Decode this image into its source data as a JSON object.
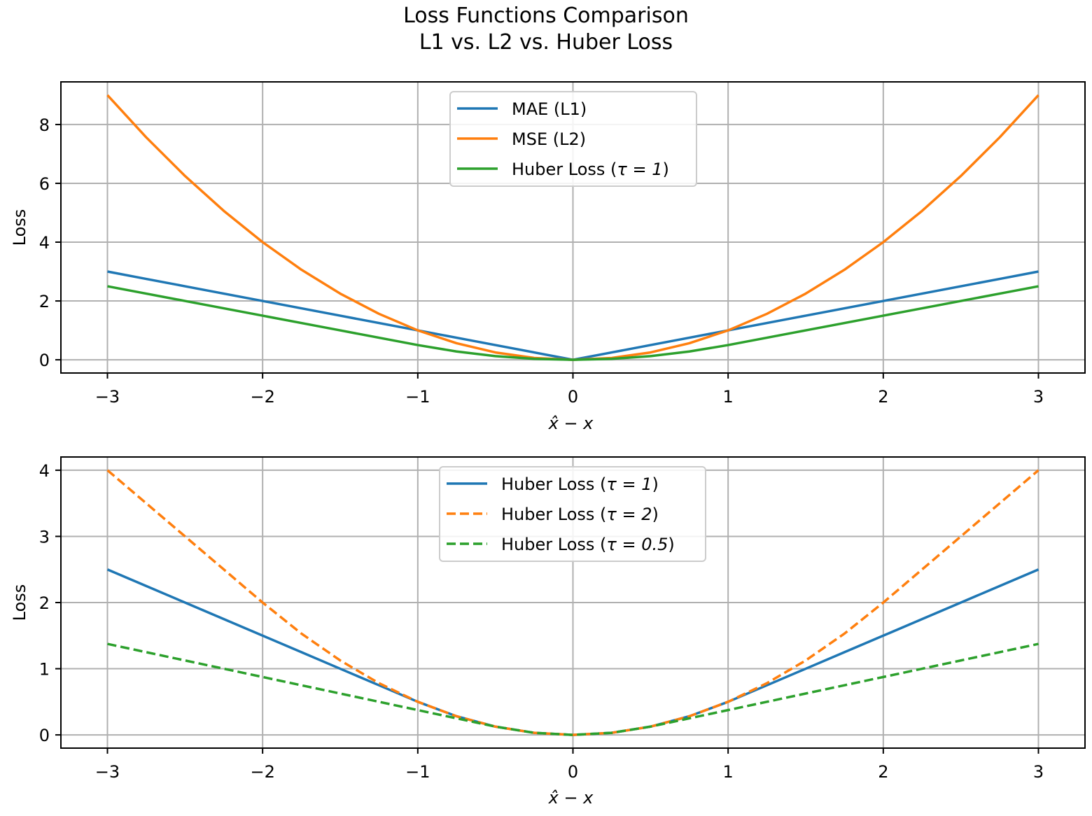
{
  "title_line1": "Loss Functions Comparison",
  "title_line2": "L1 vs. L2 vs. Huber Loss",
  "colors": {
    "blue": "#1f77b4",
    "orange": "#ff7f0e",
    "green": "#2ca02c",
    "grid": "#b0b0b0"
  },
  "chart_data": [
    {
      "type": "line",
      "xlabel": "x̂ − x",
      "ylabel": "Loss",
      "xlim": [
        -3.3,
        3.3
      ],
      "ylim": [
        -0.45,
        9.45
      ],
      "xticks": [
        -3,
        -2,
        -1,
        0,
        1,
        2,
        3
      ],
      "xtick_labels": [
        "−3",
        "−2",
        "−1",
        "0",
        "1",
        "2",
        "3"
      ],
      "yticks": [
        0,
        2,
        4,
        6,
        8
      ],
      "ytick_labels": [
        "0",
        "2",
        "4",
        "6",
        "8"
      ],
      "grid": true,
      "legend": "upper center",
      "x": [
        -3,
        -2.75,
        -2.5,
        -2.25,
        -2,
        -1.75,
        -1.5,
        -1.25,
        -1,
        -0.75,
        -0.5,
        -0.25,
        0,
        0.25,
        0.5,
        0.75,
        1,
        1.25,
        1.5,
        1.75,
        2,
        2.25,
        2.5,
        2.75,
        3
      ],
      "series": [
        {
          "name": "MAE (L1)",
          "color": "#1f77b4",
          "style": "solid",
          "values": [
            3,
            2.75,
            2.5,
            2.25,
            2,
            1.75,
            1.5,
            1.25,
            1,
            0.75,
            0.5,
            0.25,
            0,
            0.25,
            0.5,
            0.75,
            1,
            1.25,
            1.5,
            1.75,
            2,
            2.25,
            2.5,
            2.75,
            3
          ]
        },
        {
          "name": "MSE (L2)",
          "color": "#ff7f0e",
          "style": "solid",
          "values": [
            9,
            7.5625,
            6.25,
            5.0625,
            4,
            3.0625,
            2.25,
            1.5625,
            1,
            0.5625,
            0.25,
            0.0625,
            0,
            0.0625,
            0.25,
            0.5625,
            1,
            1.5625,
            2.25,
            3.0625,
            4,
            5.0625,
            6.25,
            7.5625,
            9
          ]
        },
        {
          "name_prefix": "Huber Loss (",
          "name_math": "τ = 1",
          "name_suffix": ")",
          "color": "#2ca02c",
          "style": "solid",
          "values": [
            2.5,
            2.25,
            2,
            1.75,
            1.5,
            1.25,
            1,
            0.75,
            0.5,
            0.28125,
            0.125,
            0.03125,
            0,
            0.03125,
            0.125,
            0.28125,
            0.5,
            0.75,
            1,
            1.25,
            1.5,
            1.75,
            2,
            2.25,
            2.5
          ]
        }
      ]
    },
    {
      "type": "line",
      "xlabel": "x̂ − x",
      "ylabel": "Loss",
      "xlim": [
        -3.3,
        3.3
      ],
      "ylim": [
        -0.2,
        4.2
      ],
      "xticks": [
        -3,
        -2,
        -1,
        0,
        1,
        2,
        3
      ],
      "xtick_labels": [
        "−3",
        "−2",
        "−1",
        "0",
        "1",
        "2",
        "3"
      ],
      "yticks": [
        0,
        1,
        2,
        3,
        4
      ],
      "ytick_labels": [
        "0",
        "1",
        "2",
        "3",
        "4"
      ],
      "grid": true,
      "legend": "upper center",
      "x": [
        -3,
        -2.75,
        -2.5,
        -2.25,
        -2,
        -1.75,
        -1.5,
        -1.25,
        -1,
        -0.75,
        -0.5,
        -0.25,
        0,
        0.25,
        0.5,
        0.75,
        1,
        1.25,
        1.5,
        1.75,
        2,
        2.25,
        2.5,
        2.75,
        3
      ],
      "series": [
        {
          "name_prefix": "Huber Loss (",
          "name_math": "τ = 1",
          "name_suffix": ")",
          "color": "#1f77b4",
          "style": "solid",
          "values": [
            2.5,
            2.25,
            2,
            1.75,
            1.5,
            1.25,
            1,
            0.75,
            0.5,
            0.28125,
            0.125,
            0.03125,
            0,
            0.03125,
            0.125,
            0.28125,
            0.5,
            0.75,
            1,
            1.25,
            1.5,
            1.75,
            2,
            2.25,
            2.5
          ]
        },
        {
          "name_prefix": "Huber Loss (",
          "name_math": "τ = 2",
          "name_suffix": ")",
          "color": "#ff7f0e",
          "style": "dashed",
          "values": [
            4,
            3.5,
            3,
            2.5,
            2,
            1.53125,
            1.125,
            0.78125,
            0.5,
            0.28125,
            0.125,
            0.03125,
            0,
            0.03125,
            0.125,
            0.28125,
            0.5,
            0.78125,
            1.125,
            1.53125,
            2,
            2.5,
            3,
            3.5,
            4
          ]
        },
        {
          "name_prefix": "Huber Loss (",
          "name_math": "τ = 0.5",
          "name_suffix": ")",
          "color": "#2ca02c",
          "style": "dashed",
          "values": [
            1.375,
            1.25,
            1.125,
            1,
            0.875,
            0.75,
            0.625,
            0.5,
            0.375,
            0.25,
            0.125,
            0.03125,
            0,
            0.03125,
            0.125,
            0.25,
            0.375,
            0.5,
            0.625,
            0.75,
            0.875,
            1,
            1.125,
            1.25,
            1.375
          ]
        }
      ]
    }
  ]
}
